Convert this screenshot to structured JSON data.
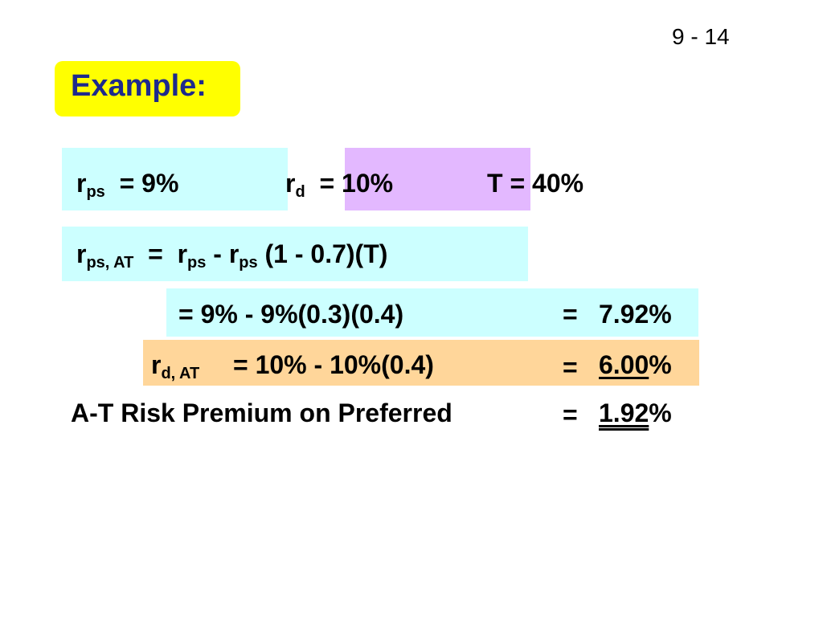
{
  "slide": {
    "page_number": "9 - 14",
    "title": "Example:"
  },
  "givens": {
    "rps": {
      "sym": "r",
      "sub": "ps",
      "eq": "=  9%"
    },
    "rd": {
      "sym": "r",
      "sub": "d",
      "eq": "=  10%"
    },
    "t": {
      "text": "T  =  40%"
    }
  },
  "formula": {
    "lhs_sym": "r",
    "lhs_sub": "ps, AT",
    "eq": "=",
    "r1_sym": "r",
    "r1_sub": "ps",
    "minus": "-",
    "r2_sym": "r",
    "r2_sub": "ps",
    "tail": "(1 - 0.7)(T)"
  },
  "calc_ps": {
    "expr": "=  9% - 9%(0.3)(0.4)",
    "eq": "=",
    "result": "7.92%"
  },
  "calc_d": {
    "lhs_sym": "r",
    "lhs_sub": "d, AT",
    "expr": "=  10% - 10%(0.4)",
    "eq": "=",
    "result_value": "6.00",
    "result_unit": "%"
  },
  "premium": {
    "label": "A-T Risk Premium on Preferred",
    "eq": "=",
    "result_value": "1.92",
    "result_unit": "%"
  },
  "colors": {
    "title_bg": "#ffff00",
    "title_text": "#1e2a8c",
    "cyan_box": "#ccffff",
    "violet_box": "#e3b8ff",
    "orange_box": "#ffd69a"
  }
}
